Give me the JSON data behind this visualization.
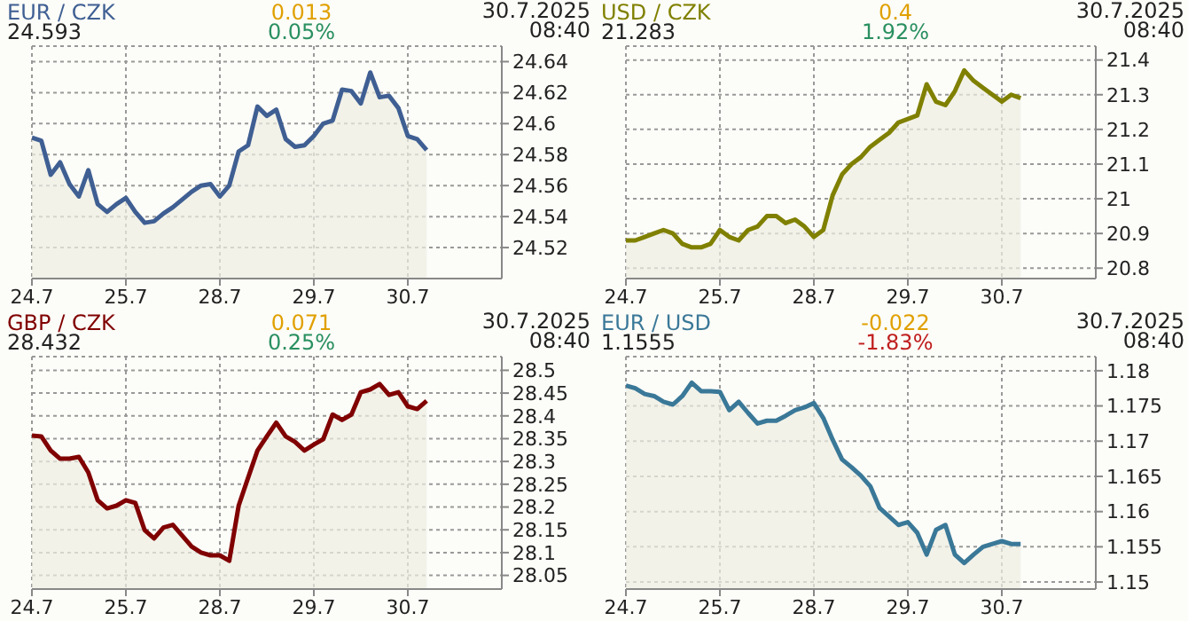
{
  "chart_data": [
    {
      "type": "area",
      "title": "EUR / CZK",
      "subtitle": "24.593",
      "annotations": [
        "0.013",
        "0.05%",
        "30.7.2025 08:40"
      ],
      "categories": [
        "24.7",
        null,
        null,
        null,
        null,
        null,
        null,
        null,
        null,
        null,
        "25.7",
        null,
        null,
        null,
        null,
        null,
        null,
        null,
        null,
        null,
        "28.7",
        null,
        null,
        null,
        null,
        null,
        null,
        null,
        null,
        null,
        "29.7",
        null,
        null,
        null,
        null,
        null,
        null,
        null,
        null,
        null,
        "30.7",
        null,
        null,
        null,
        null,
        null,
        null,
        null,
        null,
        null,
        null
      ],
      "series": [
        {
          "color": "#3f5f93",
          "values": [
            24.591,
            24.589,
            24.567,
            24.575,
            24.561,
            24.553,
            24.57,
            24.548,
            24.543,
            24.548,
            24.552,
            24.543,
            24.536,
            24.537,
            24.542,
            24.546,
            24.551,
            24.556,
            24.56,
            24.561,
            24.553,
            24.56,
            24.582,
            24.586,
            24.611,
            24.605,
            24.609,
            24.59,
            24.585,
            24.586,
            24.592,
            24.6,
            24.602,
            24.622,
            24.621,
            24.613,
            24.633,
            24.617,
            24.618,
            24.61,
            24.592,
            24.59,
            24.583,
            null,
            null,
            null,
            null,
            null,
            null,
            null,
            null
          ]
        }
      ],
      "ylim": [
        24.5,
        24.65
      ],
      "yticks": [
        24.52,
        24.54,
        24.56,
        24.58,
        24.6,
        24.62,
        24.64
      ],
      "grid": true
    },
    {
      "type": "area",
      "title": "USD / CZK",
      "subtitle": "21.283",
      "annotations": [
        "0.4",
        "1.92%",
        "30.7.2025 08:40"
      ],
      "categories": [
        "24.7",
        null,
        null,
        null,
        null,
        null,
        null,
        null,
        null,
        null,
        "25.7",
        null,
        null,
        null,
        null,
        null,
        null,
        null,
        null,
        null,
        "28.7",
        null,
        null,
        null,
        null,
        null,
        null,
        null,
        null,
        null,
        "29.7",
        null,
        null,
        null,
        null,
        null,
        null,
        null,
        null,
        null,
        "30.7",
        null,
        null,
        null,
        null,
        null,
        null,
        null,
        null,
        null,
        null
      ],
      "series": [
        {
          "color": "#808000",
          "values": [
            20.88,
            20.88,
            20.89,
            20.9,
            20.91,
            20.9,
            20.87,
            20.86,
            20.86,
            20.87,
            20.91,
            20.89,
            20.88,
            20.91,
            20.92,
            20.95,
            20.95,
            20.93,
            20.94,
            20.92,
            20.89,
            20.91,
            21.01,
            21.07,
            21.1,
            21.12,
            21.15,
            21.17,
            21.19,
            21.22,
            21.23,
            21.24,
            21.33,
            21.28,
            21.27,
            21.31,
            21.37,
            21.34,
            21.32,
            21.3,
            21.28,
            21.3,
            21.29,
            null,
            null,
            null,
            null,
            null,
            null,
            null,
            null
          ]
        }
      ],
      "ylim": [
        20.77,
        21.44
      ],
      "yticks": [
        20.8,
        20.9,
        21,
        21.1,
        21.2,
        21.3,
        21.4
      ],
      "grid": true
    },
    {
      "type": "area",
      "title": "GBP / CZK",
      "subtitle": "28.432",
      "annotations": [
        "0.071",
        "0.25%",
        "30.7.2025 08:40"
      ],
      "categories": [
        "24.7",
        null,
        null,
        null,
        null,
        null,
        null,
        null,
        null,
        null,
        "25.7",
        null,
        null,
        null,
        null,
        null,
        null,
        null,
        null,
        null,
        "28.7",
        null,
        null,
        null,
        null,
        null,
        null,
        null,
        null,
        null,
        "29.7",
        null,
        null,
        null,
        null,
        null,
        null,
        null,
        null,
        null,
        "30.7",
        null,
        null,
        null,
        null,
        null,
        null,
        null,
        null,
        null,
        null
      ],
      "series": [
        {
          "color": "#800000",
          "values": [
            28.357,
            28.355,
            28.324,
            28.306,
            28.306,
            28.31,
            28.276,
            28.215,
            28.197,
            28.203,
            28.215,
            28.209,
            28.149,
            28.131,
            28.155,
            28.161,
            28.137,
            28.113,
            28.1,
            28.094,
            28.094,
            28.082,
            28.203,
            28.264,
            28.324,
            28.355,
            28.385,
            28.355,
            28.343,
            28.324,
            28.337,
            28.349,
            28.403,
            28.391,
            28.403,
            28.452,
            28.458,
            28.47,
            28.446,
            28.452,
            28.421,
            28.415,
            28.433,
            null,
            null,
            null,
            null,
            null,
            null,
            null,
            null
          ]
        }
      ],
      "ylim": [
        28.02,
        28.53
      ],
      "yticks": [
        28.05,
        28.1,
        28.15,
        28.2,
        28.25,
        28.3,
        28.35,
        28.4,
        28.45,
        28.5
      ],
      "grid": true
    },
    {
      "type": "area",
      "title": "EUR / USD",
      "subtitle": "1.1555",
      "annotations": [
        "-0.022",
        "-1.83%",
        "30.7.2025 08:40"
      ],
      "categories": [
        "24.7",
        null,
        null,
        null,
        null,
        null,
        null,
        null,
        null,
        null,
        "25.7",
        null,
        null,
        null,
        null,
        null,
        null,
        null,
        null,
        null,
        "28.7",
        null,
        null,
        null,
        null,
        null,
        null,
        null,
        null,
        null,
        "29.7",
        null,
        null,
        null,
        null,
        null,
        null,
        null,
        null,
        null,
        "30.7",
        null,
        null,
        null,
        null,
        null,
        null,
        null,
        null,
        null,
        null
      ],
      "series": [
        {
          "color": "#3a7898",
          "values": [
            1.1779,
            1.1775,
            1.1767,
            1.1764,
            1.1756,
            1.1752,
            1.1764,
            1.1783,
            1.1771,
            1.1771,
            1.177,
            1.1744,
            1.1756,
            1.174,
            1.1725,
            1.1729,
            1.1729,
            1.1736,
            1.1744,
            1.1748,
            1.1754,
            1.1733,
            1.1702,
            1.1674,
            1.1663,
            1.1651,
            1.1636,
            1.1605,
            1.1593,
            1.1581,
            1.1585,
            1.157,
            1.1539,
            1.1574,
            1.1581,
            1.1539,
            1.1527,
            1.1539,
            1.155,
            1.1554,
            1.1558,
            1.1554,
            1.1554,
            null,
            null,
            null,
            null,
            null,
            null,
            null,
            null
          ]
        }
      ],
      "ylim": [
        1.149,
        1.182
      ],
      "yticks": [
        1.15,
        1.155,
        1.16,
        1.165,
        1.17,
        1.175,
        1.18
      ],
      "grid": true
    }
  ]
}
